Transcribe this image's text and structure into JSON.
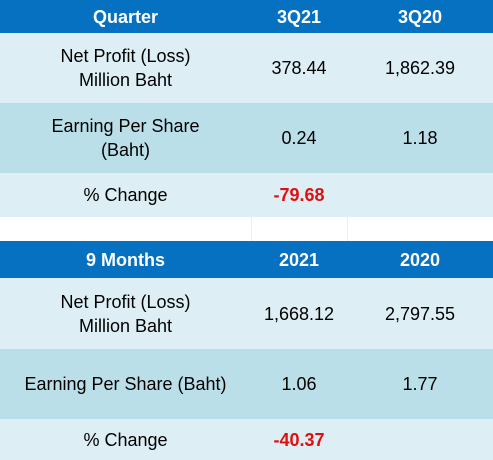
{
  "quarter": {
    "header": [
      "Quarter",
      "3Q21",
      "3Q20"
    ],
    "net_profit_label": [
      "Net Profit (Loss)",
      "Million Baht"
    ],
    "net_profit_values": [
      "378.44",
      "1,862.39"
    ],
    "eps_label": [
      "Earning Per Share",
      "(Baht)"
    ],
    "eps_values": [
      "0.24",
      "1.18"
    ],
    "change_label": "% Change",
    "change_value": "-79.68"
  },
  "nine_months": {
    "header": [
      "9 Months",
      "2021",
      "2020"
    ],
    "net_profit_label": [
      "Net Profit (Loss)",
      "Million Baht"
    ],
    "net_profit_values": [
      "1,668.12",
      "2,797.55"
    ],
    "eps_label": "Earning Per Share (Baht)",
    "eps_values": [
      "1.06",
      "1.77"
    ],
    "change_label": "% Change",
    "change_value": "-40.37"
  },
  "colors": {
    "header_bg": "#0670c1",
    "row_light": "#ddeef4",
    "row_mid": "#bbdfe9",
    "negative": "#e01010"
  }
}
